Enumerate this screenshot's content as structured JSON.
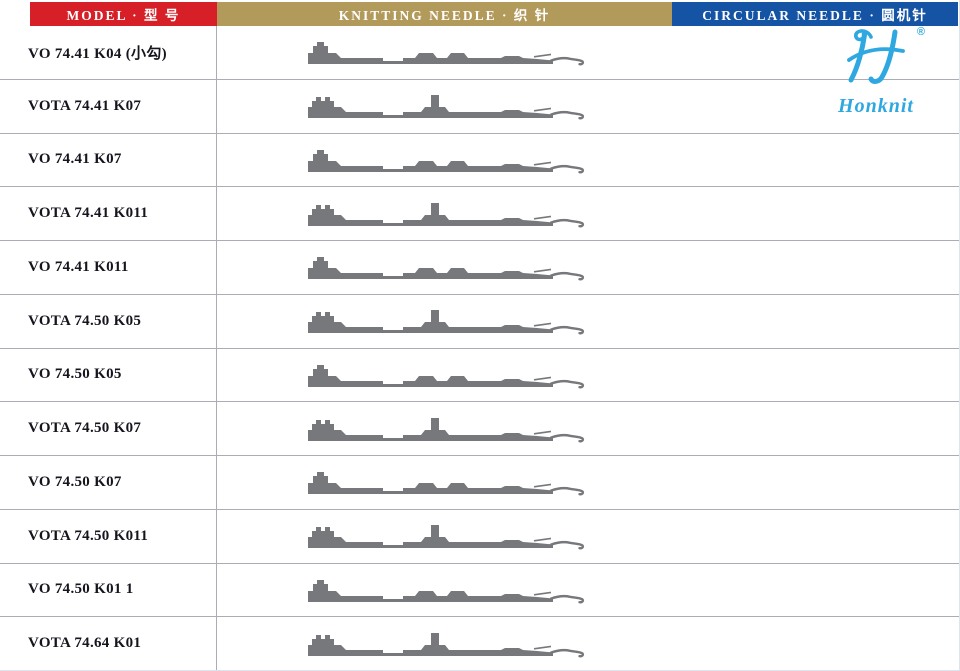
{
  "header": {
    "model_label": "MODEL · 型 号",
    "knitting_label": "KNITTING NEEDLE · 织 针",
    "circular_label": "CIRCULAR NEEDLE · 圆机针"
  },
  "logo": {
    "brand": "Honknit",
    "registered": "®",
    "mark": "stylized-h-icon"
  },
  "colors": {
    "red": "#d61f26",
    "tan": "#b29a5b",
    "blue": "#1553a4",
    "needle": "#77787b",
    "logo": "#2fa8e1",
    "line": "#abadb4",
    "text": "#15151e",
    "bg": "#ffffff"
  },
  "rows": [
    {
      "model": "VO 74.41 K04 (小勾)",
      "needle": "left-butt"
    },
    {
      "model": "VOTA 74.41 K07",
      "needle": "mid-butt"
    },
    {
      "model": "VO 74.41 K07",
      "needle": "left-butt"
    },
    {
      "model": "VOTA 74.41 K011",
      "needle": "mid-butt"
    },
    {
      "model": "VO 74.41 K011",
      "needle": "left-butt"
    },
    {
      "model": "VOTA 74.50 K05",
      "needle": "mid-butt"
    },
    {
      "model": "VO 74.50 K05",
      "needle": "left-butt"
    },
    {
      "model": "VOTA 74.50 K07",
      "needle": "mid-butt"
    },
    {
      "model": "VO 74.50 K07",
      "needle": "left-butt"
    },
    {
      "model": "VOTA 74.50 K011",
      "needle": "mid-butt"
    },
    {
      "model": "VO 74.50 K01 1",
      "needle": "left-butt"
    },
    {
      "model": "VOTA 74.64 K01",
      "needle": "mid-butt"
    }
  ]
}
